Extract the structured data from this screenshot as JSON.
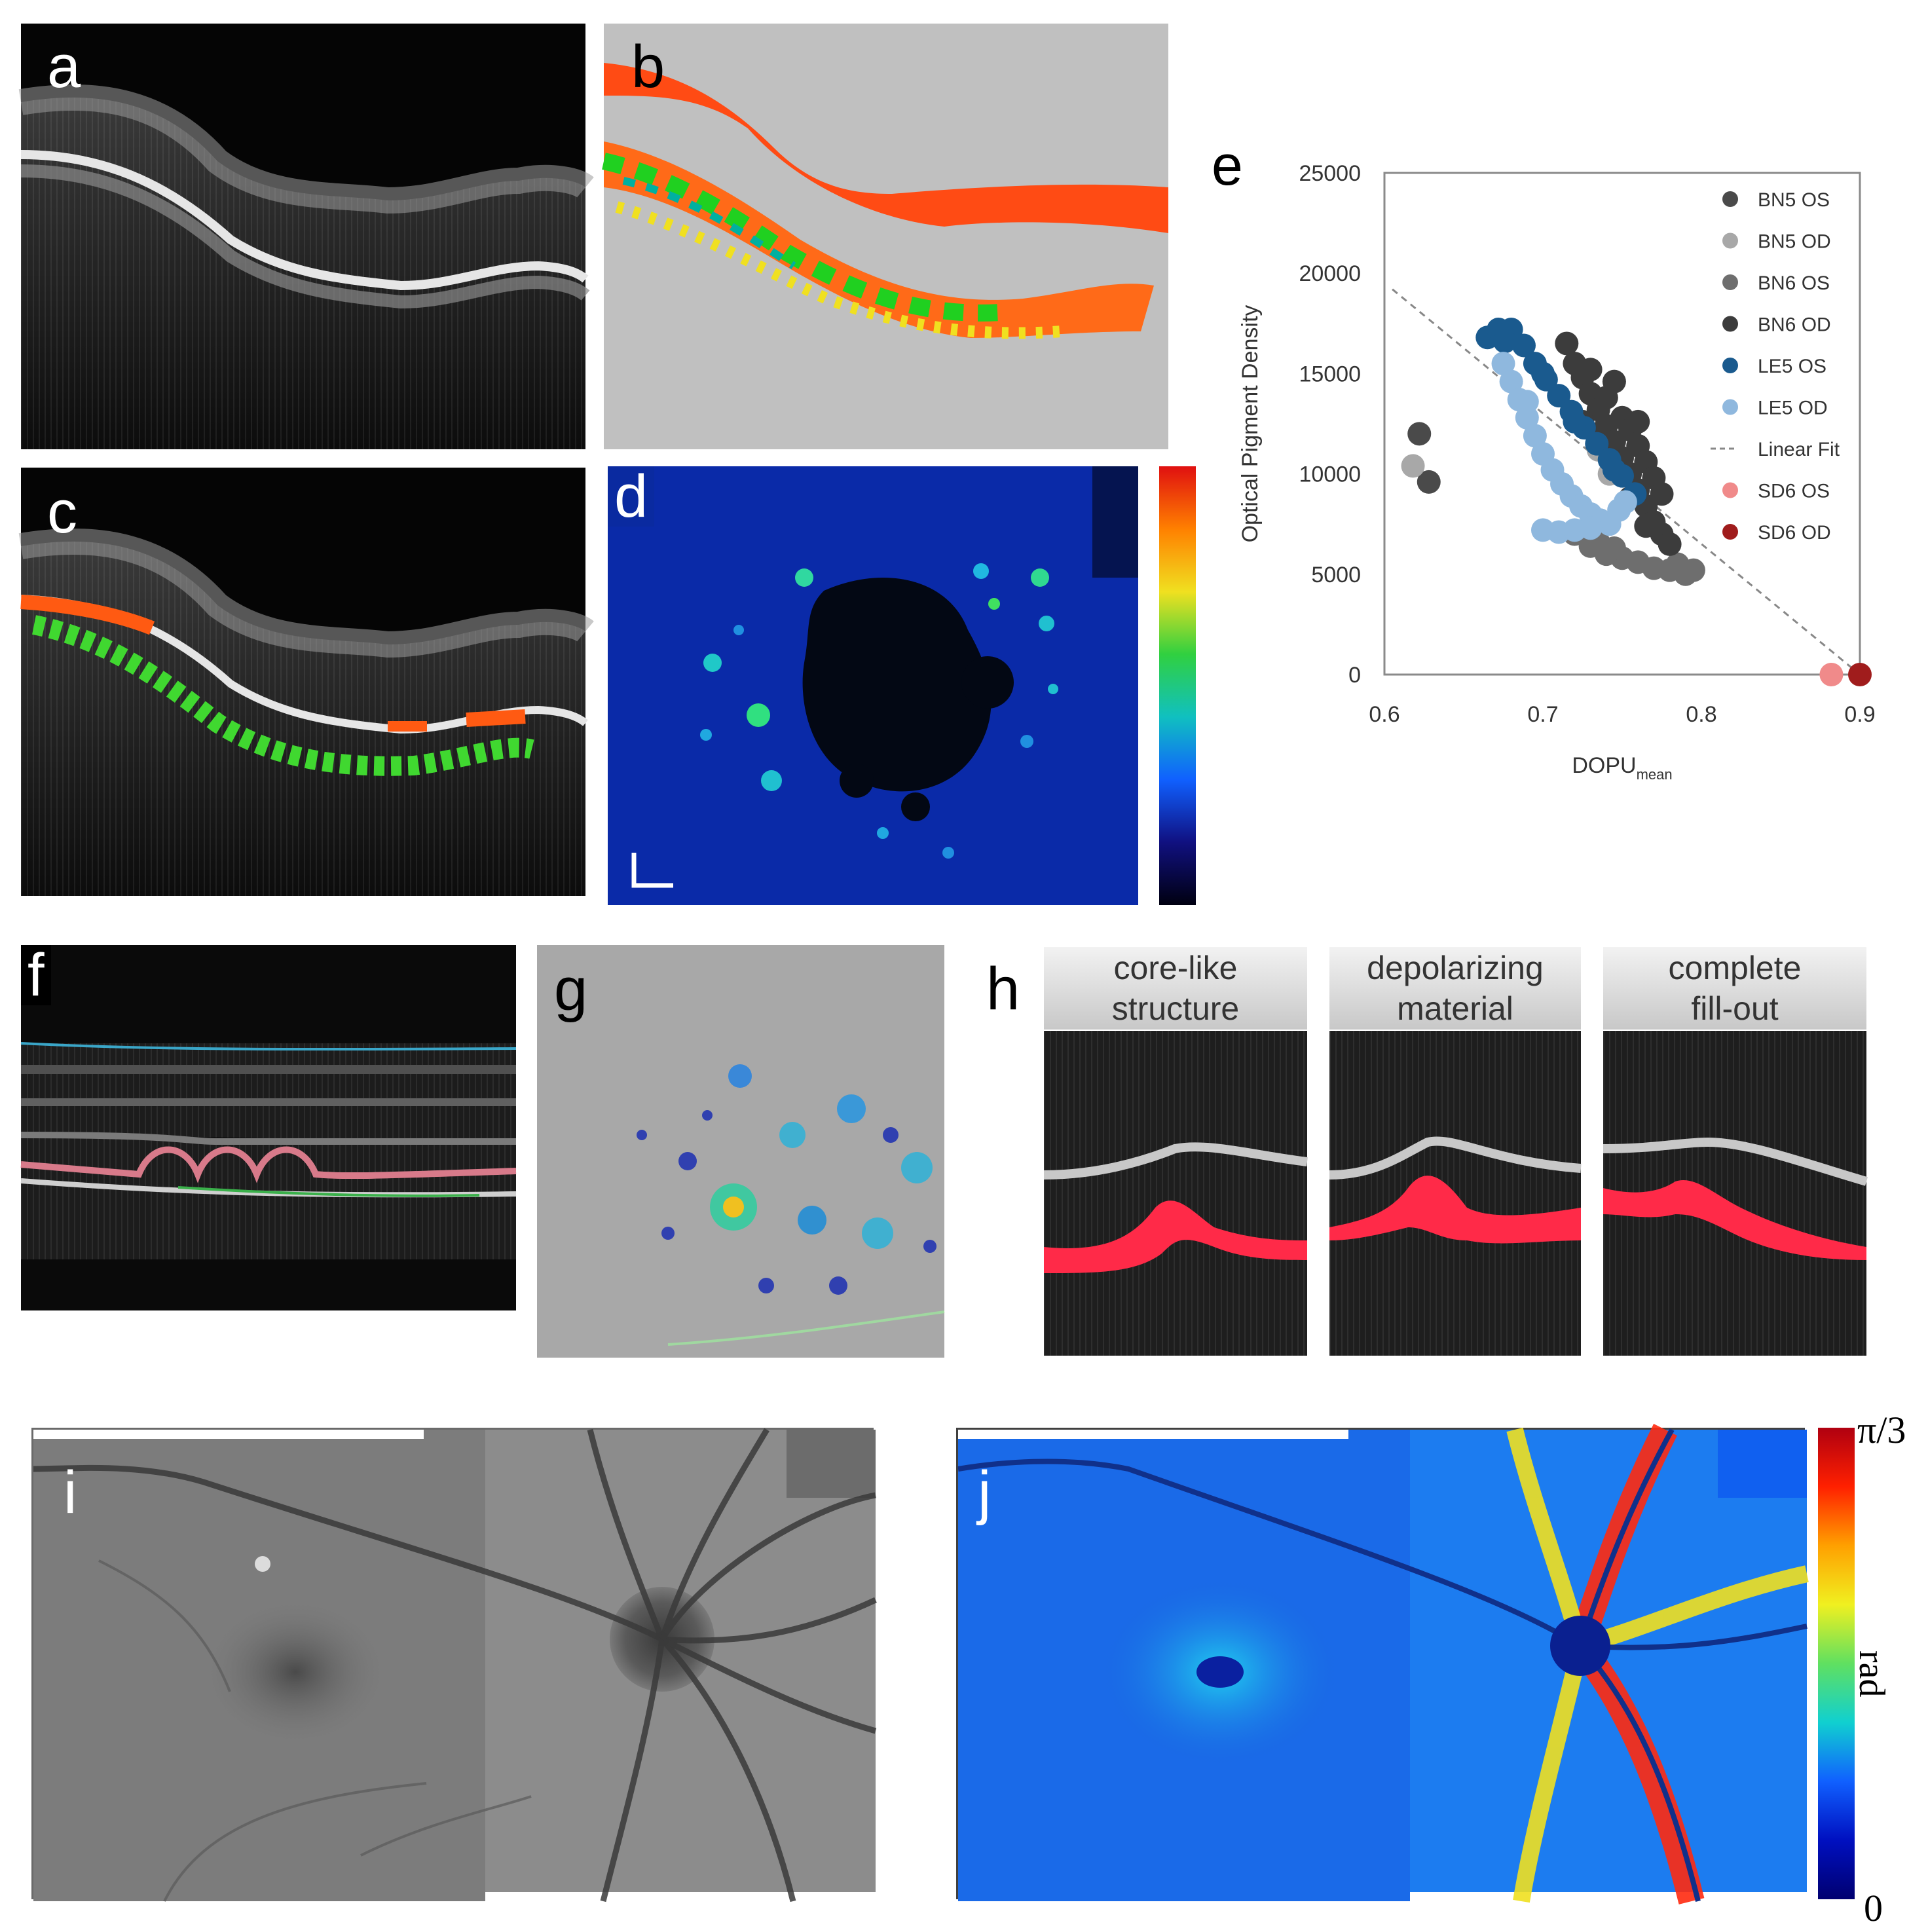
{
  "panels": {
    "a": "a",
    "b": "b",
    "c": "c",
    "d": "d",
    "e": "e",
    "f": "f",
    "g": "g",
    "h": "h",
    "i": "i",
    "j": "j"
  },
  "panel_h": {
    "captions": [
      {
        "line1": "core-like",
        "line2": "structure"
      },
      {
        "line1": "depolarizing",
        "line2": "material"
      },
      {
        "line1": "complete",
        "line2": "fill-out"
      }
    ]
  },
  "panel_j": {
    "colorbar_max": "π/3",
    "colorbar_min": "0",
    "colorbar_unit": "rad"
  },
  "chart_data": {
    "type": "scatter",
    "xlabel": "DOPU",
    "xlabel_sub": "mean",
    "ylabel": "Optical Pigment Density",
    "xlim": [
      0.6,
      0.9
    ],
    "ylim": [
      0,
      25000
    ],
    "xticks": [
      "0.6",
      "0.7",
      "0.8",
      "0.9"
    ],
    "yticks": [
      "0",
      "5000",
      "10000",
      "15000",
      "20000",
      "25000"
    ],
    "legend_position": "top-right",
    "series": [
      {
        "name": "BN5 OS",
        "color": "#4a4a4a",
        "points": [
          [
            0.622,
            12000
          ],
          [
            0.628,
            9600
          ]
        ]
      },
      {
        "name": "BN5 OD",
        "color": "#a8a8a8",
        "points": [
          [
            0.618,
            10400
          ],
          [
            0.735,
            11200
          ],
          [
            0.742,
            10000
          ]
        ]
      },
      {
        "name": "BN6 OS",
        "color": "#6e6e6e",
        "points": [
          [
            0.72,
            7000
          ],
          [
            0.73,
            6400
          ],
          [
            0.74,
            6000
          ],
          [
            0.75,
            5800
          ],
          [
            0.76,
            5600
          ],
          [
            0.77,
            5300
          ],
          [
            0.78,
            5200
          ],
          [
            0.79,
            5000
          ],
          [
            0.795,
            5200
          ],
          [
            0.785,
            5500
          ],
          [
            0.735,
            6600
          ],
          [
            0.745,
            6300
          ]
        ]
      },
      {
        "name": "BN6 OD",
        "color": "#3c3c3c",
        "points": [
          [
            0.715,
            16500
          ],
          [
            0.72,
            15500
          ],
          [
            0.725,
            14800
          ],
          [
            0.73,
            14000
          ],
          [
            0.735,
            13200
          ],
          [
            0.74,
            12400
          ],
          [
            0.745,
            11600
          ],
          [
            0.75,
            10800
          ],
          [
            0.755,
            10000
          ],
          [
            0.76,
            9200
          ],
          [
            0.765,
            8400
          ],
          [
            0.77,
            7600
          ],
          [
            0.775,
            7000
          ],
          [
            0.78,
            6500
          ],
          [
            0.74,
            13800
          ],
          [
            0.75,
            12800
          ],
          [
            0.755,
            12200
          ],
          [
            0.76,
            11400
          ],
          [
            0.765,
            10600
          ],
          [
            0.77,
            9800
          ],
          [
            0.73,
            15200
          ],
          [
            0.745,
            14600
          ],
          [
            0.76,
            12600
          ],
          [
            0.775,
            9000
          ],
          [
            0.725,
            12600
          ],
          [
            0.735,
            11800
          ],
          [
            0.745,
            10400
          ],
          [
            0.755,
            8800
          ],
          [
            0.765,
            7400
          ]
        ]
      },
      {
        "name": "LE5 OS",
        "color": "#1a5a8e",
        "points": [
          [
            0.665,
            16800
          ],
          [
            0.672,
            17200
          ],
          [
            0.68,
            17200
          ],
          [
            0.688,
            16400
          ],
          [
            0.695,
            15500
          ],
          [
            0.702,
            14700
          ],
          [
            0.71,
            13900
          ],
          [
            0.718,
            13100
          ],
          [
            0.726,
            12300
          ],
          [
            0.734,
            11500
          ],
          [
            0.742,
            10700
          ],
          [
            0.75,
            9900
          ],
          [
            0.758,
            9000
          ],
          [
            0.676,
            16600
          ],
          [
            0.7,
            15000
          ],
          [
            0.72,
            12600
          ],
          [
            0.745,
            10200
          ]
        ]
      },
      {
        "name": "LE5 OD",
        "color": "#8fb8de",
        "points": [
          [
            0.675,
            15500
          ],
          [
            0.68,
            14600
          ],
          [
            0.685,
            13700
          ],
          [
            0.69,
            12800
          ],
          [
            0.695,
            11900
          ],
          [
            0.7,
            11000
          ],
          [
            0.706,
            10200
          ],
          [
            0.712,
            9500
          ],
          [
            0.718,
            8900
          ],
          [
            0.724,
            8400
          ],
          [
            0.73,
            8000
          ],
          [
            0.736,
            7700
          ],
          [
            0.742,
            7500
          ],
          [
            0.7,
            7200
          ],
          [
            0.71,
            7100
          ],
          [
            0.72,
            7200
          ],
          [
            0.73,
            7300
          ],
          [
            0.748,
            8200
          ],
          [
            0.752,
            8600
          ],
          [
            0.69,
            13600
          ]
        ]
      },
      {
        "name": "Linear Fit",
        "color": "#888888",
        "line": [
          [
            0.605,
            19200
          ],
          [
            0.9,
            0
          ]
        ]
      },
      {
        "name": "SD6 OS",
        "color": "#f08a8a",
        "points": [
          [
            0.882,
            0
          ]
        ]
      },
      {
        "name": "SD6 OD",
        "color": "#a01c1c",
        "points": [
          [
            0.9,
            0
          ]
        ]
      }
    ]
  }
}
